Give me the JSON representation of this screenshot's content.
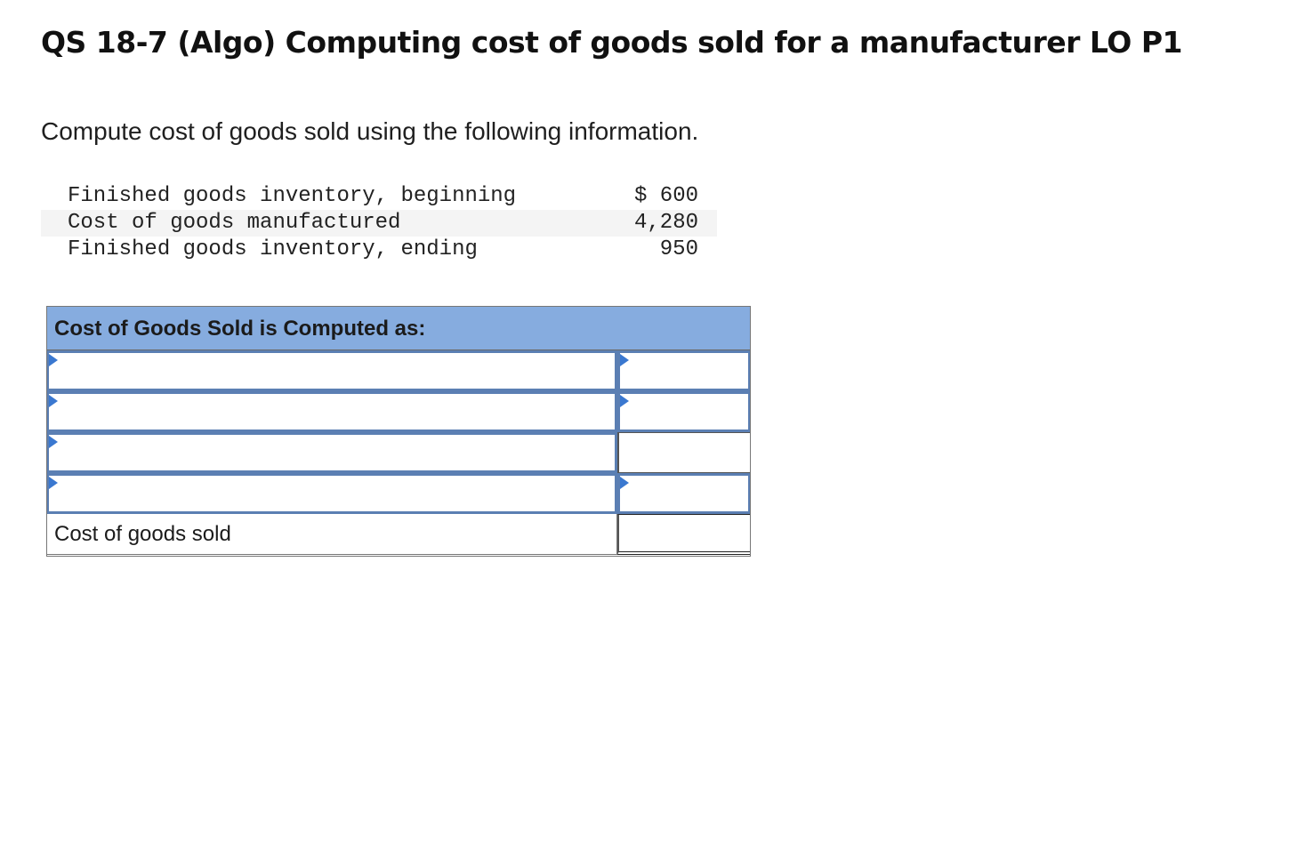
{
  "title": "QS 18-7 (Algo) Computing cost of goods sold for a manufacturer LO P1",
  "instruction": "Compute cost of goods sold using the following information.",
  "given_info": [
    {
      "label": "Finished goods inventory, beginning",
      "value": "$ 600"
    },
    {
      "label": "Cost of goods manufactured",
      "value": "4,280"
    },
    {
      "label": "Finished goods inventory, ending",
      "value": "950"
    }
  ],
  "answer_table": {
    "header": "Cost of Goods Sold is Computed as:",
    "input_rows": [
      {
        "label_value": "",
        "amount_value": "",
        "amount_has_dropdown": true
      },
      {
        "label_value": "",
        "amount_value": "",
        "amount_has_dropdown": true
      },
      {
        "label_value": "",
        "amount_value": "",
        "amount_has_dropdown": false
      },
      {
        "label_value": "",
        "amount_value": "",
        "amount_has_dropdown": true
      }
    ],
    "total_label": "Cost of goods sold",
    "total_value": ""
  },
  "colors": {
    "header_bg": "#86acdf",
    "input_border": "#5b7fb3",
    "dropdown_marker": "#3a78d0"
  },
  "icons": {
    "dropdown_marker": "triangle-right-icon"
  }
}
